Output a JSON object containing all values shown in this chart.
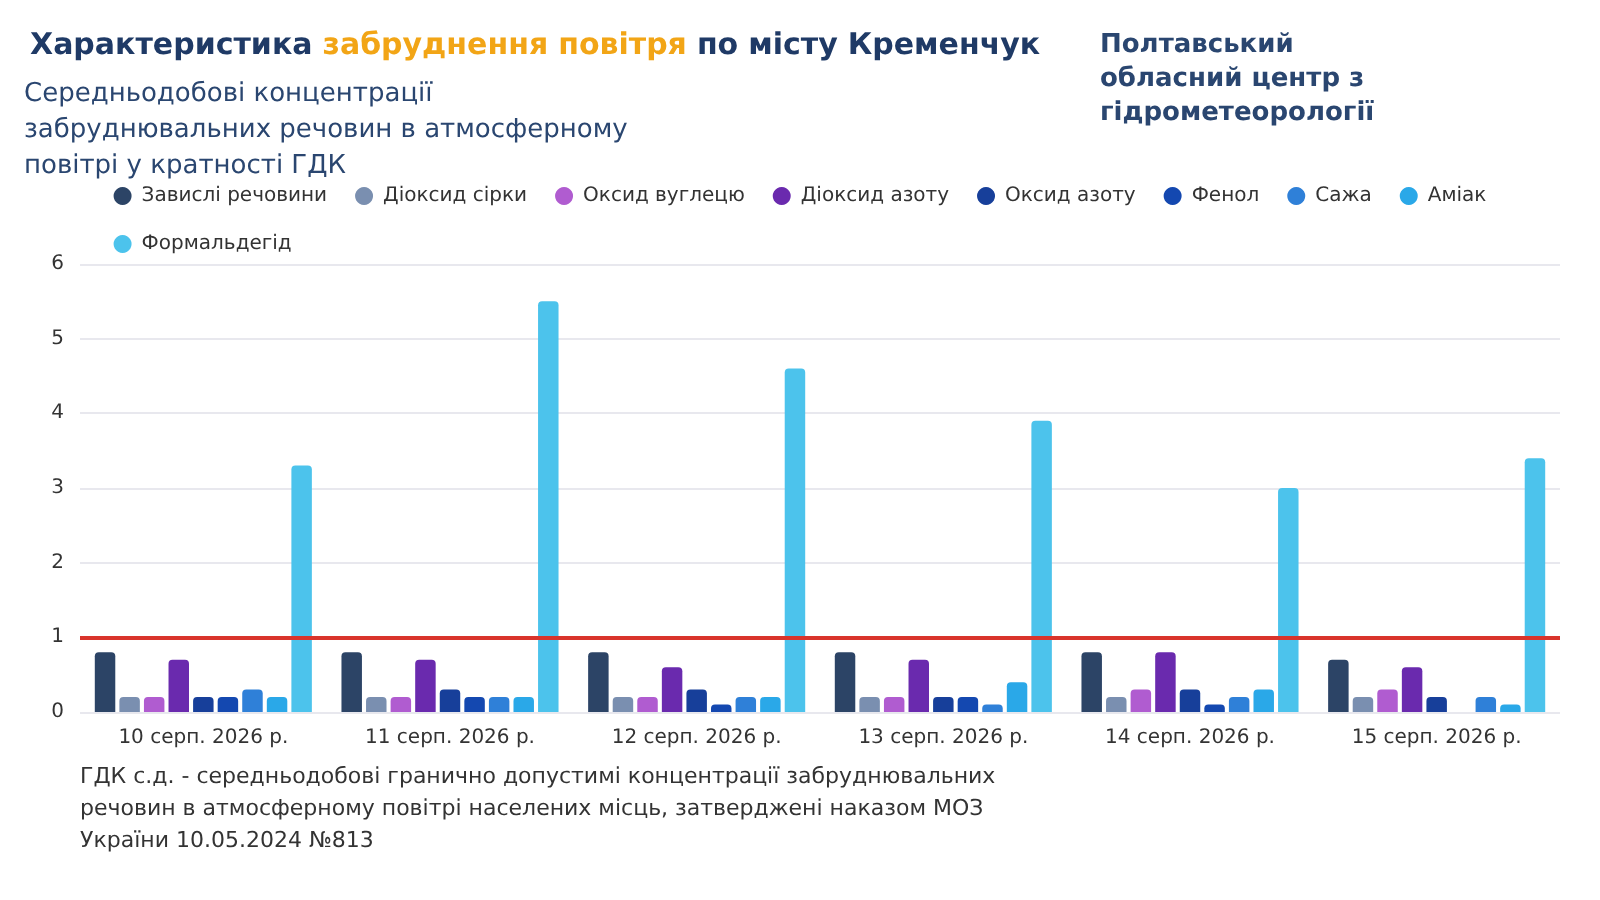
{
  "chart_data": {
    "type": "bar",
    "title": "Характеристика забруднення повітря по місту Кременчук",
    "subtitle": "Середньодобові концентрації забруднювальних речовин в атмосферному повітрі у кратності ГДК",
    "annotations": [
      "Полтавський обласний центр з гідрометеорології",
      "ГДК с.д. - середньодобові гранично допустимі концентрації забруднювальних речовин в атмосферному повітрі населених місць, затверджені наказом МОЗ України 10.05.2024 №813"
    ],
    "categories": [
      "10 серп. 2026 р.",
      "11 серп. 2026 р.",
      "12 серп. 2026 р.",
      "13 серп. 2026 р.",
      "14 серп. 2026 р.",
      "15 серп. 2026 р."
    ],
    "series": [
      {
        "name": "Завислі речовини",
        "color": "#2c4466",
        "values": [
          0.8,
          0.8,
          0.8,
          0.8,
          0.8,
          0.7
        ]
      },
      {
        "name": "Діоксид сірки",
        "color": "#7a8fb0",
        "values": [
          0.2,
          0.2,
          0.2,
          0.2,
          0.2,
          0.2
        ]
      },
      {
        "name": "Оксид вуглецю",
        "color": "#b05cd0",
        "values": [
          0.2,
          0.2,
          0.2,
          0.2,
          0.3,
          0.3
        ]
      },
      {
        "name": "Діоксид азоту",
        "color": "#6a2aae",
        "values": [
          0.7,
          0.7,
          0.6,
          0.7,
          0.8,
          0.6
        ]
      },
      {
        "name": "Оксид азоту",
        "color": "#173f9a",
        "values": [
          0.2,
          0.3,
          0.3,
          0.2,
          0.3,
          0.2
        ]
      },
      {
        "name": "Фенол",
        "color": "#1448b0",
        "values": [
          0.2,
          0.2,
          0.1,
          0.2,
          0.1,
          0
        ]
      },
      {
        "name": "Сажа",
        "color": "#2f80d8",
        "values": [
          0.3,
          0.2,
          0.2,
          0.1,
          0.2,
          0.2
        ]
      },
      {
        "name": "Аміак",
        "color": "#2aa8e8",
        "values": [
          0.2,
          0.2,
          0.2,
          0.4,
          0.3,
          0.1
        ]
      },
      {
        "name": "Формальдегід",
        "color": "#4cc3ec",
        "values": [
          3.3,
          5.5,
          4.6,
          3.9,
          3.0,
          3.4
        ]
      }
    ],
    "ylim": [
      0,
      6
    ],
    "yticks": [
      0,
      1,
      2,
      3,
      4,
      5,
      6
    ],
    "grid": "y",
    "legend": "top",
    "ref_lines": [
      {
        "axis": "y",
        "value": 1,
        "color": "#d9342b"
      }
    ]
  }
}
